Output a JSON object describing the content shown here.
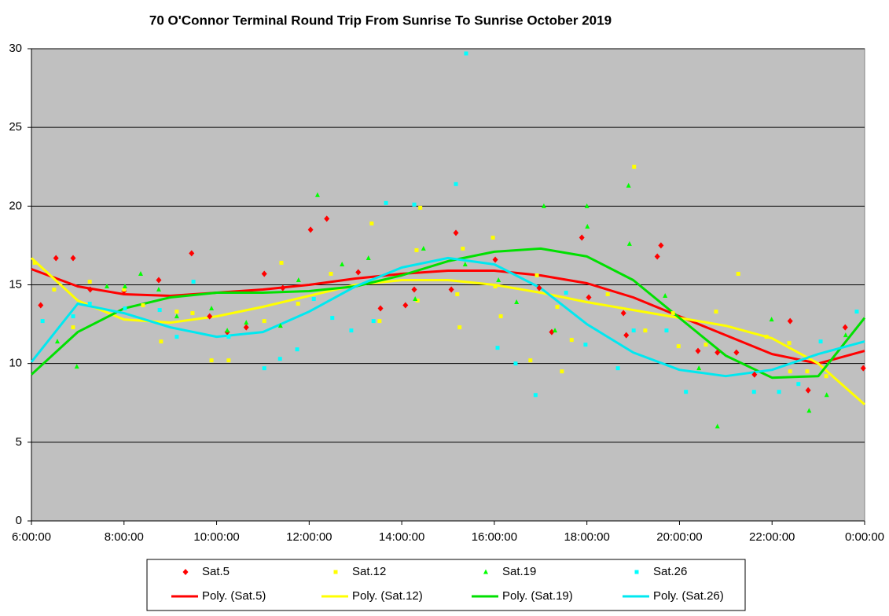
{
  "chart_data": {
    "type": "scatter",
    "title": "70 O'Connor  Terminal  Round  Trip  From  Sunrise  To  Sunrise  October  2019",
    "xlim": [
      6,
      24
    ],
    "xticks": [
      {
        "value": 6,
        "label": "6:00:00"
      },
      {
        "value": 8,
        "label": "8:00:00"
      },
      {
        "value": 10,
        "label": "10:00:00"
      },
      {
        "value": 12,
        "label": "12:00:00"
      },
      {
        "value": 14,
        "label": "14:00:00"
      },
      {
        "value": 16,
        "label": "16:00:00"
      },
      {
        "value": 18,
        "label": "18:00:00"
      },
      {
        "value": 20,
        "label": "20:00:00"
      },
      {
        "value": 22,
        "label": "22:00:00"
      },
      {
        "value": 24,
        "label": "0:00:00"
      }
    ],
    "ylim": [
      0,
      30
    ],
    "yticks": [
      0,
      5,
      10,
      15,
      20,
      25,
      30
    ],
    "grid": true,
    "background": "#c0c0c0",
    "series": [
      {
        "name": "Sat.5",
        "color": "#ff0000",
        "marker": "diamond",
        "x": [
          6.2,
          6.53,
          6.9,
          7.27,
          8.0,
          8.75,
          9.46,
          9.85,
          10.23,
          10.64,
          11.03,
          11.43,
          12.03,
          12.38,
          13.06,
          13.54,
          14.08,
          14.27,
          15.07,
          15.17,
          16.02,
          16.97,
          17.24,
          17.89,
          18.04,
          18.79,
          18.85,
          19.52,
          19.6,
          20.4,
          20.82,
          21.23,
          21.62,
          22.39,
          22.78,
          23.58,
          23.97
        ],
        "values": [
          13.7,
          16.7,
          16.7,
          14.7,
          14.6,
          15.3,
          17.0,
          13.0,
          12.0,
          12.3,
          15.7,
          14.8,
          18.5,
          19.2,
          15.8,
          13.5,
          13.7,
          14.7,
          14.7,
          18.3,
          16.6,
          14.8,
          12.0,
          18.0,
          14.2,
          13.2,
          11.8,
          16.8,
          17.5,
          10.8,
          10.7,
          10.7,
          9.3,
          12.7,
          8.3,
          12.3,
          9.7
        ]
      },
      {
        "name": "Sat.12",
        "color": "#ffff00",
        "marker": "square",
        "x": [
          6.07,
          6.49,
          6.9,
          7.26,
          8.0,
          8.41,
          8.8,
          9.14,
          9.48,
          9.89,
          10.26,
          11.03,
          11.4,
          11.76,
          12.47,
          13.35,
          13.52,
          14.32,
          14.34,
          14.4,
          15.2,
          15.25,
          15.32,
          15.97,
          16.02,
          16.14,
          16.78,
          16.92,
          17.36,
          17.46,
          17.67,
          18.45,
          19.02,
          19.26,
          19.86,
          19.98,
          20.57,
          20.79,
          21.27,
          21.88,
          22.37,
          22.39,
          22.76,
          23.17
        ],
        "values": [
          16.4,
          14.7,
          12.3,
          15.2,
          14.7,
          13.7,
          11.4,
          13.3,
          13.2,
          10.2,
          10.2,
          12.7,
          16.4,
          13.8,
          15.7,
          18.9,
          12.7,
          17.2,
          14.0,
          19.9,
          14.4,
          12.3,
          17.3,
          18.0,
          14.9,
          13.0,
          10.2,
          15.6,
          13.6,
          9.5,
          11.5,
          14.4,
          22.5,
          12.1,
          13.2,
          11.1,
          11.2,
          13.3,
          15.7,
          11.7,
          11.3,
          9.5,
          9.5,
          9.2
        ]
      },
      {
        "name": "Sat.19",
        "color": "#00ff00",
        "marker": "triangle",
        "x": [
          6.56,
          6.98,
          7.63,
          8.02,
          8.36,
          8.75,
          9.14,
          9.89,
          10.23,
          10.64,
          11.38,
          11.77,
          12.18,
          12.71,
          13.28,
          14.29,
          14.47,
          15.37,
          16.09,
          16.48,
          17.07,
          17.31,
          18.0,
          18.01,
          18.9,
          18.92,
          19.69,
          20.42,
          20.82,
          21.99,
          22.8,
          23.18,
          23.59
        ],
        "values": [
          11.4,
          9.8,
          14.9,
          14.9,
          15.7,
          14.7,
          13.0,
          13.5,
          12.1,
          12.6,
          12.4,
          15.3,
          20.7,
          16.3,
          16.7,
          14.1,
          17.3,
          16.3,
          15.3,
          13.9,
          20.0,
          12.1,
          20.0,
          18.7,
          21.3,
          17.6,
          14.3,
          9.7,
          6.0,
          12.8,
          7.0,
          8.0,
          11.8
        ]
      },
      {
        "name": "Sat.26",
        "color": "#00ffff",
        "marker": "square",
        "x": [
          6.24,
          6.9,
          7.26,
          8.02,
          8.77,
          9.14,
          9.5,
          10.26,
          11.03,
          11.37,
          11.74,
          12.1,
          12.5,
          12.91,
          13.39,
          13.66,
          14.27,
          15.17,
          15.39,
          16.07,
          16.46,
          16.89,
          17.55,
          17.97,
          18.67,
          19.01,
          19.72,
          20.14,
          21.61,
          22.15,
          22.57,
          23.05,
          23.83
        ],
        "values": [
          12.7,
          13.0,
          13.8,
          13.5,
          13.4,
          11.7,
          15.2,
          11.7,
          9.7,
          10.3,
          10.9,
          14.1,
          12.9,
          12.1,
          12.7,
          20.2,
          20.1,
          21.4,
          29.7,
          11.0,
          10.0,
          8.0,
          14.5,
          11.2,
          9.7,
          12.1,
          12.1,
          8.2,
          8.2,
          8.2,
          8.7,
          11.4,
          13.3
        ]
      }
    ],
    "trendlines": [
      {
        "name": "Poly. (Sat.5)",
        "color": "#ff0000",
        "x": [
          6,
          7,
          8,
          9,
          10,
          11,
          12,
          13,
          14,
          15,
          16,
          17,
          18,
          19,
          20,
          21,
          22,
          23,
          24
        ],
        "values": [
          16.0,
          14.9,
          14.4,
          14.3,
          14.5,
          14.7,
          15.0,
          15.4,
          15.7,
          15.9,
          15.9,
          15.6,
          15.1,
          14.2,
          13.0,
          11.8,
          10.6,
          10.0,
          10.8
        ]
      },
      {
        "name": "Poly. (Sat.12)",
        "color": "#ffff00",
        "x": [
          6,
          7,
          8,
          9,
          10,
          11,
          12,
          13,
          14,
          15,
          16,
          17,
          18,
          19,
          20,
          21,
          22,
          23,
          24
        ],
        "values": [
          16.7,
          14.0,
          12.8,
          12.6,
          13.0,
          13.6,
          14.3,
          15.0,
          15.3,
          15.3,
          15.0,
          14.5,
          13.9,
          13.4,
          12.9,
          12.4,
          11.6,
          10.0,
          7.4
        ]
      },
      {
        "name": "Poly. (Sat.19)",
        "color": "#00e000",
        "x": [
          6,
          7,
          8,
          9,
          10,
          11,
          12,
          13,
          14,
          15,
          16,
          17,
          18,
          19,
          20,
          21,
          22,
          23,
          24
        ],
        "values": [
          9.3,
          12.0,
          13.5,
          14.2,
          14.5,
          14.5,
          14.6,
          14.9,
          15.6,
          16.5,
          17.1,
          17.3,
          16.8,
          15.3,
          12.9,
          10.5,
          9.1,
          9.2,
          12.9
        ]
      },
      {
        "name": "Poly. (Sat.26)",
        "color": "#00e8f0",
        "x": [
          6,
          7,
          8,
          9,
          10,
          11,
          12,
          13,
          14,
          15,
          16,
          17,
          18,
          19,
          20,
          21,
          22,
          23,
          24
        ],
        "values": [
          10.1,
          13.8,
          13.2,
          12.3,
          11.7,
          12.0,
          13.3,
          14.9,
          16.1,
          16.7,
          16.3,
          14.8,
          12.5,
          10.7,
          9.6,
          9.2,
          9.6,
          10.6,
          11.4
        ]
      }
    ]
  }
}
